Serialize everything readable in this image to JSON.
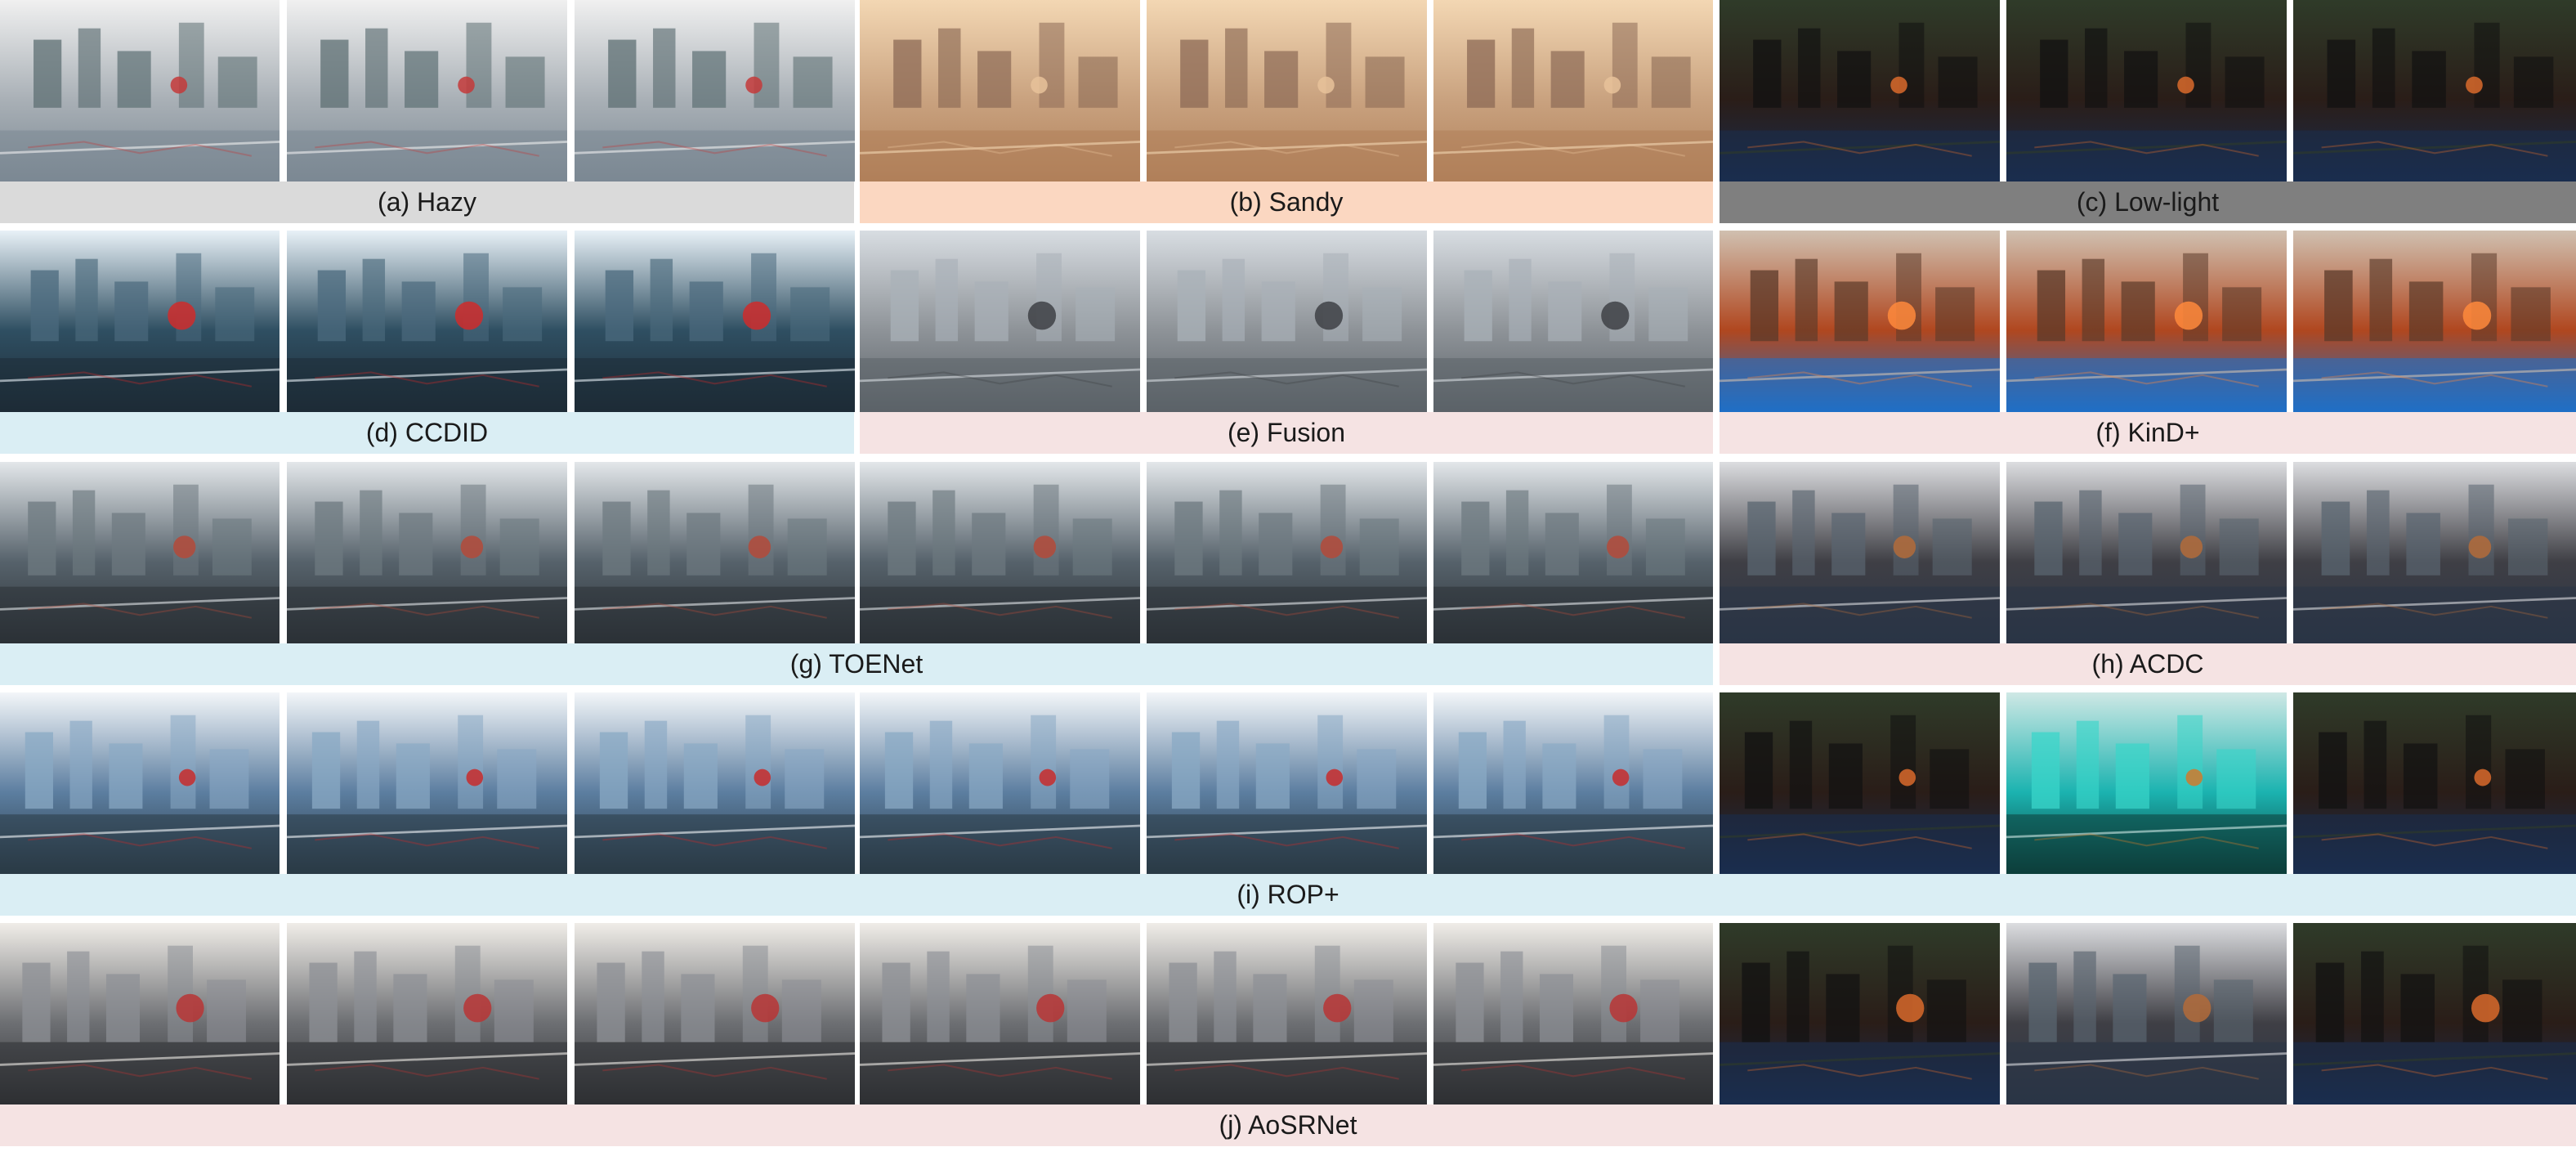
{
  "figure": {
    "rows": [
      {
        "row_id": "hazy-input",
        "bands": [
          {
            "label": "(a) Hazy",
            "bg": "#dadada"
          },
          {
            "label": "(b) Sandy",
            "bg": "#fbd7c1"
          },
          {
            "label": "(c) Low-light",
            "bg": "#7f7f7f"
          }
        ]
      },
      {
        "row_id": "single-task-1",
        "bands": [
          {
            "label": "(d) CCDID",
            "bg": "#daeef4"
          },
          {
            "label": "(e) Fusion",
            "bg": "#f5e3e3"
          },
          {
            "label": "(f) KinD+",
            "bg": "#f5e3e3"
          }
        ]
      },
      {
        "row_id": "toenet-acdc",
        "bands": [
          {
            "label": "(g) TOENet",
            "bg": "#daeef4"
          },
          {
            "label": "(h) ACDC",
            "bg": "#f5e3e3"
          }
        ]
      },
      {
        "row_id": "ropplus",
        "bands": [
          {
            "label": "(i) ROP+",
            "bg": "#daeef4"
          }
        ]
      },
      {
        "row_id": "aosrnet",
        "bands": [
          {
            "label": "(j) AoSRNet",
            "bg": "#f5e3e3"
          }
        ]
      }
    ],
    "palettes": {
      "hazy": [
        "#a9b0b6",
        "#7b8893",
        "#5d6f73",
        "#c43a3a",
        "#f0f0f0"
      ],
      "sandy": [
        "#c9a27f",
        "#b0805a",
        "#8c6a55",
        "#e7c29a",
        "#f3d7b3"
      ],
      "lowlight": [
        "#2a1d18",
        "#1a2e4f",
        "#111111",
        "#d96a2b",
        "#2f3b29"
      ],
      "ccdid": [
        "#2f4f62",
        "#1d2b36",
        "#4b6a7d",
        "#cf2b2b",
        "#e8f1f7"
      ],
      "fusion": [
        "#8e9398",
        "#5b6268",
        "#a9b1b8",
        "#3e4145",
        "#d8dde2"
      ],
      "kind": [
        "#b0471f",
        "#1f6fc6",
        "#5b3a2a",
        "#ff8a3c",
        "#d0c0b0"
      ],
      "toenet": [
        "#56626b",
        "#2b3136",
        "#6d7980",
        "#b44a3a",
        "#e3e7ea"
      ],
      "rop": [
        "#5c7ea0",
        "#2a3a46",
        "#8aa9c4",
        "#c82b2b",
        "#f3f6f9"
      ],
      "aos": [
        "#6d6f73",
        "#2e3033",
        "#8d9096",
        "#b83535",
        "#f0ede8"
      ],
      "acdc": [
        "#3f3f45",
        "#2a3446",
        "#5a6570",
        "#b36b3a",
        "#dcdde0"
      ],
      "cyan": [
        "#1bb3b0",
        "#0d3e3b",
        "#39d6c9",
        "#d07a2b",
        "#cfe8e5"
      ]
    }
  }
}
